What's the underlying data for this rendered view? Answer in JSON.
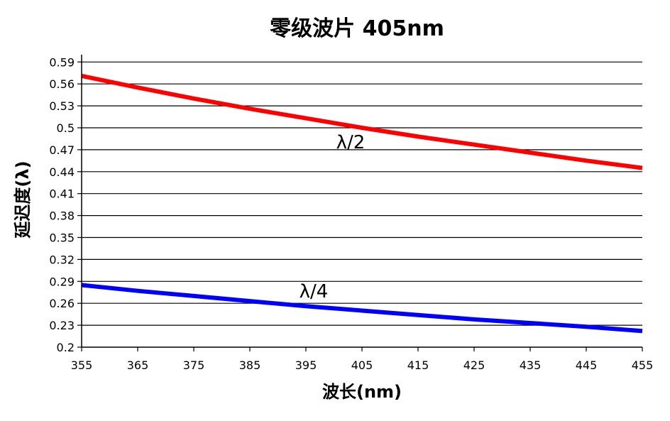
{
  "chart_data": {
    "type": "line",
    "title": "零级波片 405nm",
    "xlabel": "波长(nm)",
    "ylabel": "延迟度(λ)",
    "xlim": [
      355,
      455
    ],
    "ylim": [
      0.2,
      0.6
    ],
    "x_ticks": [
      "355",
      "365",
      "375",
      "385",
      "395",
      "405",
      "415",
      "425",
      "435",
      "445",
      "455"
    ],
    "y_ticks": [
      "0.2",
      "0.23",
      "0.26",
      "0.29",
      "0.32",
      "0.35",
      "0.38",
      "0.41",
      "0.44",
      "0.47",
      "0.5",
      "0.53",
      "0.56",
      "0.59"
    ],
    "grid": "horizontal",
    "series": [
      {
        "name": "λ/2",
        "color": "#ff0000",
        "x": [
          355,
          365,
          375,
          385,
          395,
          405,
          415,
          425,
          435,
          445,
          455
        ],
        "values": [
          0.571,
          0.555,
          0.54,
          0.526,
          0.513,
          0.5,
          0.488,
          0.477,
          0.466,
          0.455,
          0.445
        ]
      },
      {
        "name": "λ/4",
        "color": "#0000ff",
        "x": [
          355,
          365,
          375,
          385,
          395,
          405,
          415,
          425,
          435,
          445,
          455
        ],
        "values": [
          0.285,
          0.277,
          0.27,
          0.263,
          0.256,
          0.25,
          0.244,
          0.238,
          0.233,
          0.228,
          0.222
        ]
      }
    ]
  }
}
